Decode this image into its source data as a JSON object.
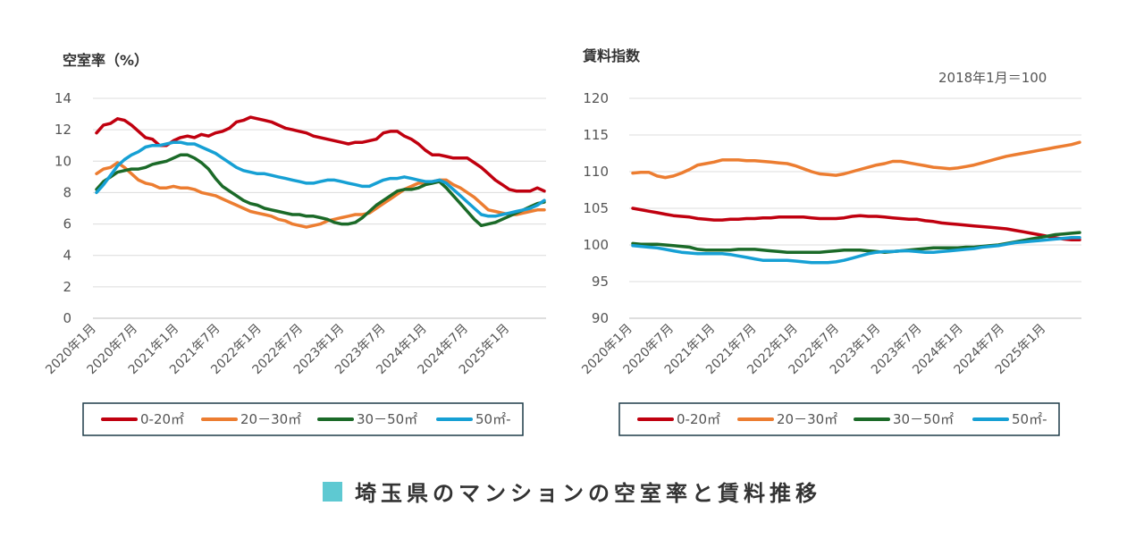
{
  "title": "埼玉県のマンションの空室率と賃料推移",
  "colors": {
    "s1": "#c0000f",
    "s2": "#ec7d31",
    "s3": "#1b6a28",
    "s4": "#16a0d4",
    "title_square": "#5ec9d2"
  },
  "chart_data": [
    {
      "type": "line",
      "title": "",
      "ylabel": "空室率（%）",
      "xlabel": "",
      "note": "",
      "ylim": [
        0,
        14
      ],
      "yticks": [
        "0",
        "2",
        "4",
        "6",
        "8",
        "10",
        "12",
        "14"
      ],
      "xticks": [
        "2020年1月",
        "2020年7月",
        "2021年1月",
        "2021年7月",
        "2022年1月",
        "2022年7月",
        "2023年1月",
        "2023年7月",
        "2024年1月",
        "2024年7月",
        "2025年1月"
      ],
      "legend_position": "bottom",
      "grid": true,
      "series": [
        {
          "name": "0-20㎡",
          "color": "#c0000f",
          "values": [
            11.8,
            12.3,
            12.4,
            12.7,
            12.6,
            12.3,
            11.9,
            11.5,
            11.4,
            11.0,
            11.0,
            11.3,
            11.5,
            11.6,
            11.5,
            11.7,
            11.6,
            11.8,
            11.9,
            12.1,
            12.5,
            12.6,
            12.8,
            12.7,
            12.6,
            12.5,
            12.3,
            12.1,
            12.0,
            11.9,
            11.8,
            11.6,
            11.5,
            11.4,
            11.3,
            11.2,
            11.1,
            11.2,
            11.2,
            11.3,
            11.4,
            11.8,
            11.9,
            11.9,
            11.6,
            11.4,
            11.1,
            10.7,
            10.4,
            10.4,
            10.3,
            10.2,
            10.2,
            10.2,
            9.9,
            9.6,
            9.2,
            8.8,
            8.5,
            8.2,
            8.1,
            8.1,
            8.1,
            8.3,
            8.1
          ]
        },
        {
          "name": "20－30㎡",
          "color": "#ec7d31",
          "values": [
            9.2,
            9.5,
            9.6,
            9.9,
            9.6,
            9.2,
            8.8,
            8.6,
            8.5,
            8.3,
            8.3,
            8.4,
            8.3,
            8.3,
            8.2,
            8.0,
            7.9,
            7.8,
            7.6,
            7.4,
            7.2,
            7.0,
            6.8,
            6.7,
            6.6,
            6.5,
            6.3,
            6.2,
            6.0,
            5.9,
            5.8,
            5.9,
            6.0,
            6.2,
            6.3,
            6.4,
            6.5,
            6.6,
            6.6,
            6.7,
            7.0,
            7.3,
            7.6,
            7.9,
            8.2,
            8.4,
            8.6,
            8.6,
            8.7,
            8.8,
            8.8,
            8.5,
            8.3,
            8.0,
            7.7,
            7.3,
            6.9,
            6.8,
            6.7,
            6.6,
            6.6,
            6.7,
            6.8,
            6.9,
            6.9
          ]
        },
        {
          "name": "30－50㎡",
          "color": "#1b6a28",
          "values": [
            8.2,
            8.7,
            9.0,
            9.3,
            9.4,
            9.5,
            9.5,
            9.6,
            9.8,
            9.9,
            10.0,
            10.2,
            10.4,
            10.4,
            10.2,
            9.9,
            9.5,
            8.9,
            8.4,
            8.1,
            7.8,
            7.5,
            7.3,
            7.2,
            7.0,
            6.9,
            6.8,
            6.7,
            6.6,
            6.6,
            6.5,
            6.5,
            6.4,
            6.3,
            6.1,
            6.0,
            6.0,
            6.1,
            6.4,
            6.8,
            7.2,
            7.5,
            7.8,
            8.1,
            8.2,
            8.2,
            8.3,
            8.5,
            8.6,
            8.7,
            8.3,
            7.8,
            7.3,
            6.8,
            6.3,
            5.9,
            6.0,
            6.1,
            6.3,
            6.5,
            6.7,
            6.9,
            7.1,
            7.3,
            7.4
          ]
        },
        {
          "name": "50㎡-",
          "color": "#16a0d4",
          "values": [
            8.0,
            8.5,
            9.1,
            9.7,
            10.1,
            10.4,
            10.6,
            10.9,
            11.0,
            11.0,
            11.1,
            11.2,
            11.2,
            11.1,
            11.1,
            10.9,
            10.7,
            10.5,
            10.2,
            9.9,
            9.6,
            9.4,
            9.3,
            9.2,
            9.2,
            9.1,
            9.0,
            8.9,
            8.8,
            8.7,
            8.6,
            8.6,
            8.7,
            8.8,
            8.8,
            8.7,
            8.6,
            8.5,
            8.4,
            8.4,
            8.6,
            8.8,
            8.9,
            8.9,
            9.0,
            8.9,
            8.8,
            8.7,
            8.7,
            8.8,
            8.6,
            8.2,
            7.8,
            7.4,
            7.0,
            6.6,
            6.5,
            6.5,
            6.6,
            6.7,
            6.8,
            6.9,
            7.0,
            7.2,
            7.5
          ]
        }
      ]
    },
    {
      "type": "line",
      "title": "",
      "ylabel": "賃料指数",
      "xlabel": "",
      "note": "2018年1月＝100",
      "ylim": [
        90,
        120
      ],
      "yticks": [
        "90",
        "95",
        "100",
        "105",
        "110",
        "115",
        "120"
      ],
      "xticks": [
        "2020年1月",
        "2020年7月",
        "2021年1月",
        "2021年7月",
        "2022年1月",
        "2022年7月",
        "2023年1月",
        "2023年7月",
        "2024年1月",
        "2024年7月",
        "2025年1月"
      ],
      "legend_position": "bottom",
      "grid": true,
      "series": [
        {
          "name": "0-20㎡",
          "color": "#c0000f",
          "values": [
            105.0,
            104.8,
            104.6,
            104.4,
            104.2,
            104.0,
            103.9,
            103.8,
            103.6,
            103.5,
            103.4,
            103.4,
            103.5,
            103.5,
            103.6,
            103.6,
            103.7,
            103.7,
            103.8,
            103.8,
            103.8,
            103.8,
            103.7,
            103.6,
            103.6,
            103.6,
            103.7,
            103.9,
            104.0,
            103.9,
            103.9,
            103.8,
            103.7,
            103.6,
            103.5,
            103.5,
            103.3,
            103.2,
            103.0,
            102.9,
            102.8,
            102.7,
            102.6,
            102.5,
            102.4,
            102.3,
            102.2,
            102.0,
            101.8,
            101.6,
            101.4,
            101.2,
            101.0,
            100.8,
            100.7,
            100.7
          ]
        },
        {
          "name": "20－30㎡",
          "color": "#ec7d31",
          "values": [
            109.8,
            109.9,
            109.9,
            109.4,
            109.2,
            109.4,
            109.8,
            110.3,
            110.9,
            111.1,
            111.3,
            111.6,
            111.6,
            111.6,
            111.5,
            111.5,
            111.4,
            111.3,
            111.2,
            111.1,
            110.8,
            110.4,
            110.0,
            109.7,
            109.6,
            109.5,
            109.7,
            110.0,
            110.3,
            110.6,
            110.9,
            111.1,
            111.4,
            111.4,
            111.2,
            111.0,
            110.8,
            110.6,
            110.5,
            110.4,
            110.5,
            110.7,
            110.9,
            111.2,
            111.5,
            111.8,
            112.1,
            112.3,
            112.5,
            112.7,
            112.9,
            113.1,
            113.3,
            113.5,
            113.7,
            114.0
          ]
        },
        {
          "name": "30－50㎡",
          "color": "#1b6a28",
          "values": [
            100.2,
            100.1,
            100.1,
            100.1,
            100.0,
            99.9,
            99.8,
            99.7,
            99.4,
            99.3,
            99.3,
            99.3,
            99.3,
            99.4,
            99.4,
            99.4,
            99.3,
            99.2,
            99.1,
            99.0,
            99.0,
            99.0,
            99.0,
            99.0,
            99.1,
            99.2,
            99.3,
            99.3,
            99.3,
            99.2,
            99.1,
            99.0,
            99.1,
            99.2,
            99.3,
            99.4,
            99.5,
            99.6,
            99.6,
            99.6,
            99.6,
            99.7,
            99.7,
            99.8,
            99.9,
            100.0,
            100.2,
            100.4,
            100.6,
            100.8,
            101.0,
            101.2,
            101.4,
            101.5,
            101.6,
            101.7
          ]
        },
        {
          "name": "50㎡-",
          "color": "#16a0d4",
          "values": [
            99.9,
            99.8,
            99.7,
            99.6,
            99.4,
            99.2,
            99.0,
            98.9,
            98.8,
            98.8,
            98.8,
            98.8,
            98.7,
            98.5,
            98.3,
            98.1,
            97.9,
            97.9,
            97.9,
            97.9,
            97.8,
            97.7,
            97.6,
            97.6,
            97.6,
            97.7,
            97.9,
            98.2,
            98.5,
            98.8,
            99.0,
            99.1,
            99.1,
            99.2,
            99.2,
            99.1,
            99.0,
            99.0,
            99.1,
            99.2,
            99.3,
            99.4,
            99.5,
            99.7,
            99.8,
            99.9,
            100.1,
            100.3,
            100.4,
            100.5,
            100.6,
            100.7,
            100.8,
            100.9,
            101.0,
            101.0
          ]
        }
      ]
    }
  ]
}
